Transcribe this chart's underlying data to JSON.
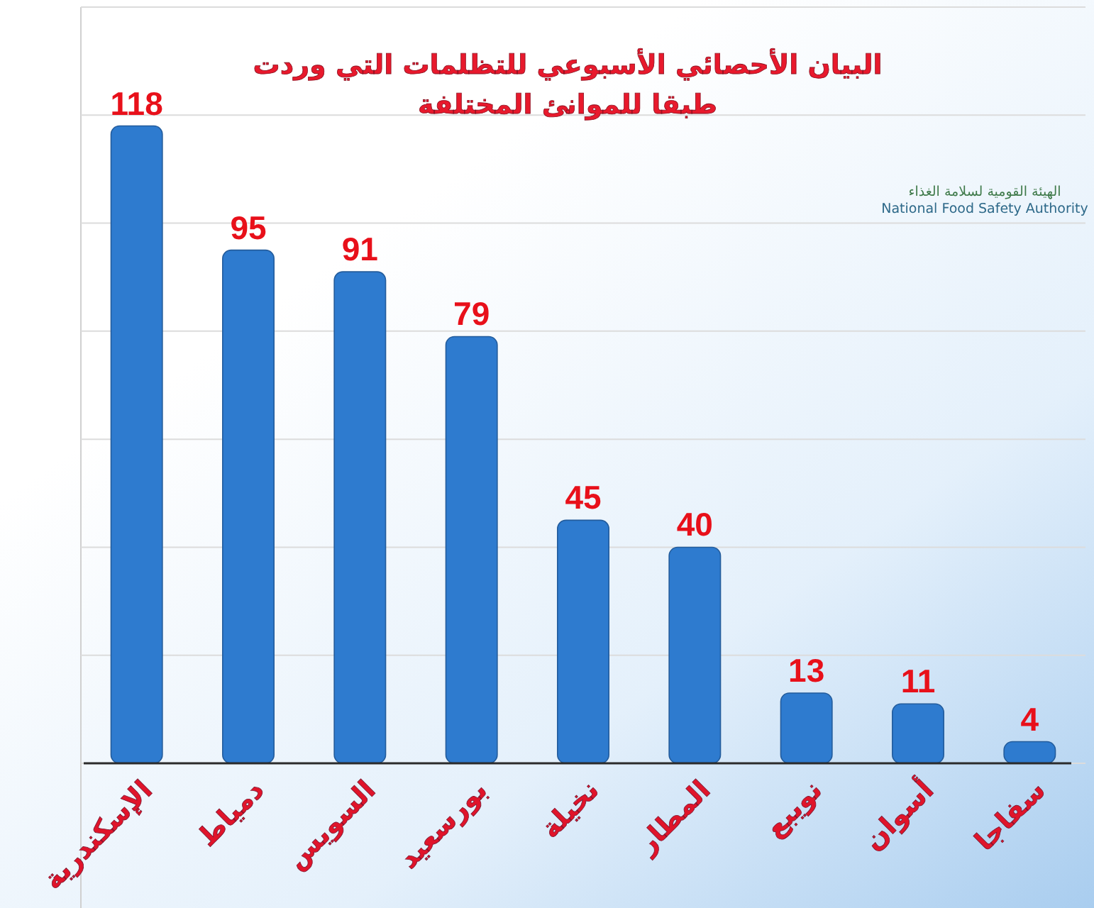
{
  "chart_data": {
    "type": "bar",
    "title": "البيان الأحصائي الأسبوعي للتظلمات التي وردت\nطبقا للموانئ المختلفة",
    "annotations": [
      "الهيئة القومية لسلامة الغذاء",
      "National Food Safety Authority"
    ],
    "categories": [
      "الإسكندرية",
      "دمياط",
      "السويس",
      "بورسعيد",
      "نخيلة",
      "المطار",
      "نويبع",
      "أسوان",
      "سفاجا"
    ],
    "values": [
      118,
      95,
      91,
      79,
      45,
      40,
      13,
      11,
      4
    ],
    "color": "#2e7bcf",
    "data_labels": true,
    "ylim": [
      0,
      140
    ],
    "yticks": [
      {
        "value": 0,
        "label": null
      },
      {
        "value": 20,
        "label": null
      },
      {
        "value": 40,
        "label": null
      },
      {
        "value": 60,
        "label": null
      },
      {
        "value": 80,
        "label": null
      },
      {
        "value": 100,
        "label": null
      },
      {
        "value": 120,
        "label": null
      },
      {
        "value": 140,
        "label": null
      }
    ],
    "tick_labels": "x",
    "grid": "y"
  }
}
